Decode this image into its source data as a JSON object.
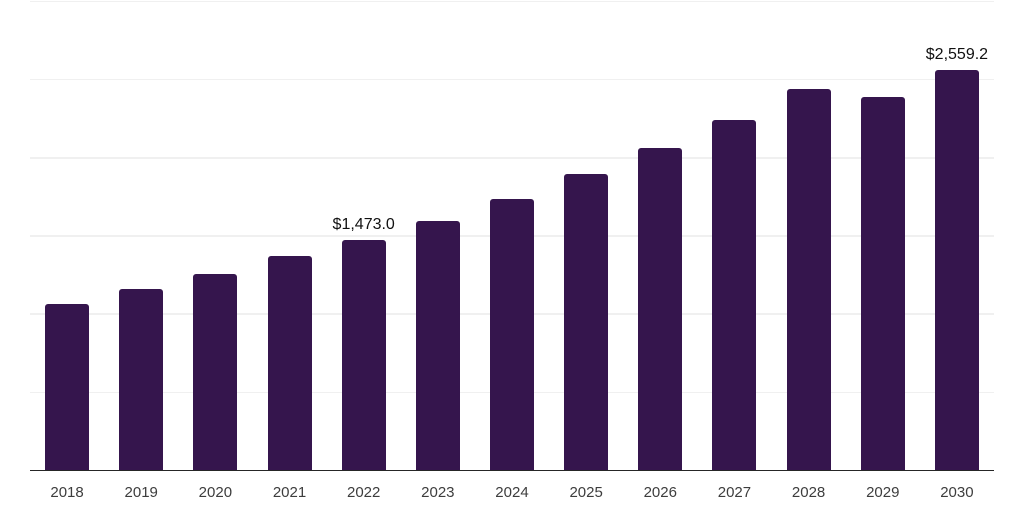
{
  "chart_data": {
    "type": "bar",
    "title": "",
    "xlabel": "",
    "ylabel": "",
    "categories": [
      "2018",
      "2019",
      "2020",
      "2021",
      "2022",
      "2023",
      "2024",
      "2025",
      "2026",
      "2027",
      "2028",
      "2029",
      "2030"
    ],
    "values": [
      1065,
      1160,
      1258,
      1370,
      1473.0,
      1595,
      1735,
      1895,
      2060,
      2240,
      2440,
      2390,
      2559.2
    ],
    "ylim": [
      0,
      3000
    ],
    "gridline_interval": 500,
    "grid": "horizontal",
    "legend_position": "none",
    "data_labels": [
      {
        "index": 4,
        "text": "$1,473.0"
      },
      {
        "index": 12,
        "text": "$2,559.2"
      }
    ],
    "colors": {
      "bar": "#35154d",
      "gridline": "#f0f0f0",
      "axis_line": "#262626",
      "tick_label": "#3d3d3d",
      "data_label": "#111111",
      "background": "#ffffff"
    }
  }
}
